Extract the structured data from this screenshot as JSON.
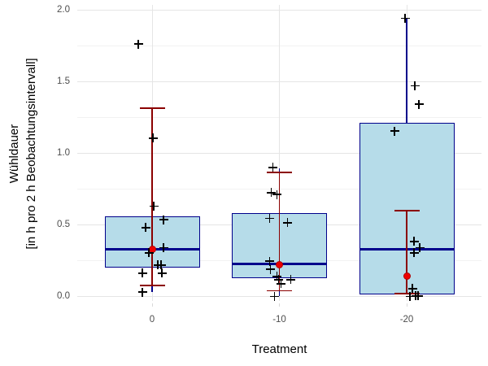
{
  "chart_data": {
    "type": "boxplot",
    "title": "",
    "xlabel": "Treatment",
    "ylabel": "Wühldauer\n[in h pro 2 h Beobachtungsintervall]",
    "categories": [
      "0",
      "-10",
      "-20"
    ],
    "y_tick_labels": [
      "0.0",
      "0.5",
      "1.0",
      "1.5",
      "2.0"
    ],
    "y_tick_values": [
      0.0,
      0.5,
      1.0,
      1.5,
      2.0
    ],
    "y_minor_values": [
      0.25,
      0.75,
      1.25,
      1.75
    ],
    "ylim": [
      0,
      2
    ],
    "grid": "major-and-minor, light gray on white",
    "legend": "none",
    "boxes": [
      {
        "category": "0",
        "q1": 0.2,
        "median": 0.33,
        "q3": 0.56,
        "whisker_low": 0.03,
        "whisker_high": 0.63,
        "mean": 0.33,
        "err_low": 0.075,
        "err_high": 1.315
      },
      {
        "category": "-10",
        "q1": 0.125,
        "median": 0.225,
        "q3": 0.58,
        "whisker_low": 0.005,
        "whisker_high": 0.895,
        "mean": 0.22,
        "err_low": 0.04,
        "err_high": 0.865
      },
      {
        "category": "-20",
        "q1": 0.012,
        "median": 0.33,
        "q3": 1.21,
        "whisker_low": 0.012,
        "whisker_high": 1.94,
        "mean": 0.14,
        "err_low": 0.02,
        "err_high": 0.6
      }
    ],
    "jitter_points": [
      {
        "cat": 0,
        "dx": -17,
        "y": 1.76
      },
      {
        "cat": 0,
        "dx": 1,
        "y": 1.105
      },
      {
        "cat": 0,
        "dx": 2,
        "y": 0.63
      },
      {
        "cat": 0,
        "dx": 14,
        "y": 0.535
      },
      {
        "cat": 0,
        "dx": -8,
        "y": 0.48
      },
      {
        "cat": 0,
        "dx": 14,
        "y": 0.34
      },
      {
        "cat": 0,
        "dx": -4,
        "y": 0.305
      },
      {
        "cat": 0,
        "dx": 7,
        "y": 0.22
      },
      {
        "cat": 0,
        "dx": 11,
        "y": 0.22
      },
      {
        "cat": 0,
        "dx": -12,
        "y": 0.163
      },
      {
        "cat": 0,
        "dx": 12,
        "y": 0.163
      },
      {
        "cat": 0,
        "dx": -12,
        "y": 0.03
      },
      {
        "cat": 1,
        "dx": -8,
        "y": 0.9
      },
      {
        "cat": 1,
        "dx": -10,
        "y": 0.725
      },
      {
        "cat": 1,
        "dx": -3,
        "y": 0.71
      },
      {
        "cat": 1,
        "dx": -12,
        "y": 0.545
      },
      {
        "cat": 1,
        "dx": 10,
        "y": 0.515
      },
      {
        "cat": 1,
        "dx": -12,
        "y": 0.245
      },
      {
        "cat": 1,
        "dx": -11,
        "y": 0.188
      },
      {
        "cat": 1,
        "dx": -3,
        "y": 0.14
      },
      {
        "cat": 1,
        "dx": -1,
        "y": 0.118
      },
      {
        "cat": 1,
        "dx": 14,
        "y": 0.118
      },
      {
        "cat": 1,
        "dx": 2,
        "y": 0.088
      },
      {
        "cat": 1,
        "dx": -6,
        "y": 0.0
      },
      {
        "cat": 2,
        "dx": -2,
        "y": 1.94
      },
      {
        "cat": 2,
        "dx": 10,
        "y": 1.47
      },
      {
        "cat": 2,
        "dx": 15,
        "y": 1.34
      },
      {
        "cat": 2,
        "dx": -15,
        "y": 1.153
      },
      {
        "cat": 2,
        "dx": 9,
        "y": 0.385
      },
      {
        "cat": 2,
        "dx": 16,
        "y": 0.34
      },
      {
        "cat": 2,
        "dx": 9,
        "y": 0.305
      },
      {
        "cat": 2,
        "dx": 7,
        "y": 0.056
      },
      {
        "cat": 2,
        "dx": 4,
        "y": 0.0
      },
      {
        "cat": 2,
        "dx": 11,
        "y": 0.004
      },
      {
        "cat": 2,
        "dx": 14,
        "y": 0.004
      }
    ],
    "colors": {
      "box_fill": "#B6DCE9",
      "box_border": "#00008B",
      "median": "#00008B",
      "whisker": "#00008B",
      "errorbar": "#8B0000",
      "mean_point": "#EE0000",
      "jitter": "#000000",
      "grid_major": "#E5E5E5",
      "grid_minor": "#F2F2F2",
      "axis_text": "#4D4D4D",
      "tick_mark": "#D9D9D9",
      "background": "#FFFFFF"
    }
  }
}
